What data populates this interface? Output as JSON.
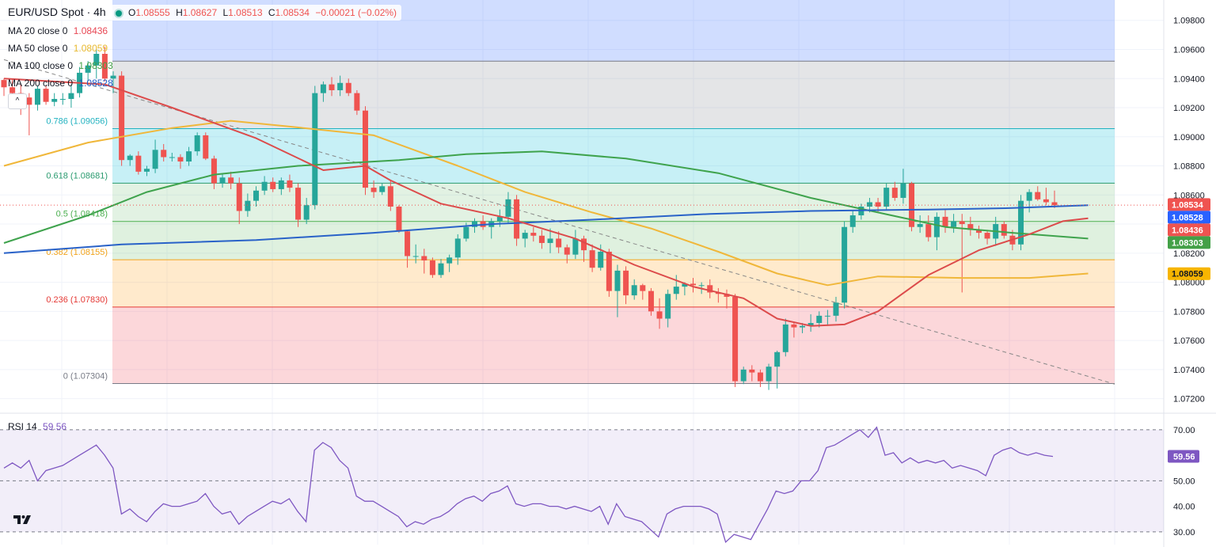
{
  "symbol": {
    "title": "EUR/USD Spot · 4h",
    "open_label": "O",
    "open": "1.08555",
    "high_label": "H",
    "high": "1.08627",
    "low_label": "L",
    "low": "1.08513",
    "close_label": "C",
    "close": "1.08534",
    "change": "−0.00021 (−0.02%)"
  },
  "indicators": [
    {
      "label": "MA 20 close 0",
      "value": "1.08436",
      "color": "#e84855"
    },
    {
      "label": "MA 50 close 0",
      "value": "1.08059",
      "color": "#e8b930"
    },
    {
      "label": "MA 100 close 0",
      "value": "1.08303",
      "color": "#43a047"
    },
    {
      "label": "MA 200 close 0",
      "value": "1.08528",
      "color": "#1e5bc6"
    }
  ],
  "colors": {
    "up": "#26a69a",
    "down": "#ef5350",
    "ma20": "#dc4b4b",
    "ma50": "#f0b73a",
    "ma100": "#3fa34d",
    "ma200": "#2962c8",
    "rsi": "#7e57c2",
    "trendline": "#888888"
  },
  "chart_data": [
    {
      "type": "candlestick",
      "title": "EUR/USD Spot · 4h",
      "y_ticks": [
        "1.09800",
        "1.09600",
        "1.09400",
        "1.09200",
        "1.09000",
        "1.08800",
        "1.08600",
        "1.08400",
        "1.08200",
        "1.08000",
        "1.07800",
        "1.07600",
        "1.07400",
        "1.07200"
      ],
      "ylim": [
        1.071,
        1.0994
      ],
      "grid": true,
      "fibonacci": [
        {
          "label": "0.786 (1.09056)",
          "level": 1.09056,
          "color": "#21b2c0"
        },
        {
          "label": "0.618 (1.08681)",
          "level": 1.08681,
          "color": "#2a9b6f"
        },
        {
          "label": "0.5 (1.08418)",
          "level": 1.08418,
          "color": "#4caf50"
        },
        {
          "label": "0.382 (1.08155)",
          "level": 1.08155,
          "color": "#f2a41c"
        },
        {
          "label": "0.236 (1.07830)",
          "level": 1.0783,
          "color": "#e53935"
        },
        {
          "label": "0 (1.07304)",
          "level": 1.07304,
          "color": "#787b86"
        }
      ],
      "fib_top": 1.0952,
      "price_labels": [
        {
          "value": "1.08534",
          "color": "#ef5350"
        },
        {
          "value": "1.08528",
          "color": "#2962ff"
        },
        {
          "value": "1.08436",
          "color": "#ef5350"
        },
        {
          "value": "1.08303",
          "color": "#43a047"
        },
        {
          "value": "1.08059",
          "color": "#f7b500"
        }
      ],
      "candles": [
        [
          1.0939,
          1.094,
          1.0928,
          1.0934
        ],
        [
          1.0934,
          1.094,
          1.0928,
          1.093
        ],
        [
          1.093,
          1.0936,
          1.0915,
          1.0927
        ],
        [
          1.0927,
          1.093,
          1.0901,
          1.0922
        ],
        [
          1.0922,
          1.0935,
          1.0918,
          1.0933
        ],
        [
          1.0933,
          1.0935,
          1.0922,
          1.0924
        ],
        [
          1.0924,
          1.093,
          1.0921,
          1.0926
        ],
        [
          1.0926,
          1.093,
          1.0922,
          1.0926
        ],
        [
          1.0926,
          1.0936,
          1.092,
          1.093
        ],
        [
          1.093,
          1.0948,
          1.0927,
          1.0944
        ],
        [
          1.0944,
          1.0952,
          1.0938,
          1.0949
        ],
        [
          1.0949,
          1.096,
          1.094,
          1.0957
        ],
        [
          1.0957,
          1.0962,
          1.0938,
          1.094
        ],
        [
          1.094,
          1.0945,
          1.093,
          1.0942
        ],
        [
          1.0942,
          1.0945,
          1.088,
          1.0884
        ],
        [
          1.0884,
          1.0888,
          1.088,
          1.0887
        ],
        [
          1.0887,
          1.089,
          1.0874,
          1.0876
        ],
        [
          1.0876,
          1.088,
          1.0873,
          1.0878
        ],
        [
          1.0878,
          1.0898,
          1.0875,
          1.0891
        ],
        [
          1.0891,
          1.0895,
          1.0883,
          1.0886
        ],
        [
          1.0886,
          1.0889,
          1.0883,
          1.0886
        ],
        [
          1.0886,
          1.0888,
          1.0878,
          1.0883
        ],
        [
          1.0883,
          1.0893,
          1.088,
          1.089
        ],
        [
          1.089,
          1.0903,
          1.0887,
          1.0901
        ],
        [
          1.0901,
          1.0903,
          1.0884,
          1.0885
        ],
        [
          1.0885,
          1.0887,
          1.0864,
          1.0868
        ],
        [
          1.0868,
          1.0875,
          1.0865,
          1.0872
        ],
        [
          1.0872,
          1.0876,
          1.0864,
          1.0868
        ],
        [
          1.0868,
          1.0872,
          1.084,
          1.0849
        ],
        [
          1.0849,
          1.0861,
          1.0845,
          1.0856
        ],
        [
          1.0856,
          1.0866,
          1.0852,
          1.0863
        ],
        [
          1.0863,
          1.0873,
          1.086,
          1.0869
        ],
        [
          1.0869,
          1.0872,
          1.0862,
          1.0864
        ],
        [
          1.0864,
          1.0872,
          1.086,
          1.087
        ],
        [
          1.087,
          1.0874,
          1.0862,
          1.0865
        ],
        [
          1.0865,
          1.0868,
          1.0838,
          1.0843
        ],
        [
          1.0843,
          1.0858,
          1.084,
          1.0853
        ],
        [
          1.0853,
          1.0935,
          1.085,
          1.093
        ],
        [
          1.093,
          1.0938,
          1.0924,
          1.0936
        ],
        [
          1.0936,
          1.0941,
          1.0928,
          1.0932
        ],
        [
          1.0932,
          1.0942,
          1.0928,
          1.0937
        ],
        [
          1.0937,
          1.094,
          1.0928,
          1.093
        ],
        [
          1.093,
          1.0932,
          1.0915,
          1.0918
        ],
        [
          1.0918,
          1.0921,
          1.086,
          1.0865
        ],
        [
          1.0865,
          1.087,
          1.0858,
          1.0862
        ],
        [
          1.0862,
          1.0868,
          1.086,
          1.0866
        ],
        [
          1.0866,
          1.087,
          1.0849,
          1.0852
        ],
        [
          1.0852,
          1.0853,
          1.0834,
          1.0835
        ],
        [
          1.0835,
          1.0836,
          1.081,
          1.0818
        ],
        [
          1.0818,
          1.0826,
          1.0813,
          1.0818
        ],
        [
          1.0818,
          1.0823,
          1.0806,
          1.0815
        ],
        [
          1.0815,
          1.0817,
          1.0803,
          1.0805
        ],
        [
          1.0805,
          1.0816,
          1.0803,
          1.0813
        ],
        [
          1.0813,
          1.0819,
          1.0807,
          1.0817
        ],
        [
          1.0817,
          1.0833,
          1.0812,
          1.083
        ],
        [
          1.083,
          1.0841,
          1.0828,
          1.0838
        ],
        [
          1.0838,
          1.0844,
          1.0834,
          1.0842
        ],
        [
          1.0842,
          1.0846,
          1.0836,
          1.0838
        ],
        [
          1.0838,
          1.0844,
          1.083,
          1.0842
        ],
        [
          1.0842,
          1.085,
          1.0838,
          1.0845
        ],
        [
          1.0845,
          1.0862,
          1.084,
          1.0857
        ],
        [
          1.0857,
          1.086,
          1.0825,
          1.083
        ],
        [
          1.083,
          1.0836,
          1.0824,
          1.0834
        ],
        [
          1.0834,
          1.0838,
          1.0828,
          1.0832
        ],
        [
          1.0832,
          1.0836,
          1.0823,
          1.0827
        ],
        [
          1.0827,
          1.0837,
          1.082,
          1.083
        ],
        [
          1.083,
          1.0835,
          1.082,
          1.0824
        ],
        [
          1.0824,
          1.0826,
          1.0813,
          1.0819
        ],
        [
          1.0819,
          1.0836,
          1.0816,
          1.083
        ],
        [
          1.083,
          1.0832,
          1.0814,
          1.0822
        ],
        [
          1.0822,
          1.0826,
          1.0807,
          1.081
        ],
        [
          1.081,
          1.0826,
          1.0808,
          1.0821
        ],
        [
          1.0821,
          1.0823,
          1.079,
          1.0794
        ],
        [
          1.0794,
          1.0812,
          1.0776,
          1.0808
        ],
        [
          1.0808,
          1.0811,
          1.0785,
          1.0791
        ],
        [
          1.0791,
          1.0802,
          1.0788,
          1.0798
        ],
        [
          1.0798,
          1.0799,
          1.0788,
          1.0794
        ],
        [
          1.0794,
          1.0796,
          1.0777,
          1.078
        ],
        [
          1.078,
          1.0789,
          1.0768,
          1.0775
        ],
        [
          1.0775,
          1.0795,
          1.0769,
          1.0792
        ],
        [
          1.0792,
          1.0805,
          1.0788,
          1.0797
        ],
        [
          1.0797,
          1.08,
          1.0791,
          1.0799
        ],
        [
          1.0799,
          1.0803,
          1.0793,
          1.0798
        ],
        [
          1.0798,
          1.08,
          1.0792,
          1.0798
        ],
        [
          1.0798,
          1.0802,
          1.0789,
          1.0793
        ],
        [
          1.0793,
          1.0796,
          1.0786,
          1.0792
        ],
        [
          1.0792,
          1.0795,
          1.0782,
          1.079
        ],
        [
          1.079,
          1.0792,
          1.0728,
          1.0732
        ],
        [
          1.0732,
          1.0742,
          1.073,
          1.074
        ],
        [
          1.074,
          1.0743,
          1.0732,
          1.0738
        ],
        [
          1.0738,
          1.074,
          1.0728,
          1.0732
        ],
        [
          1.0732,
          1.0744,
          1.0726,
          1.0742
        ],
        [
          1.0742,
          1.0753,
          1.0727,
          1.0752
        ],
        [
          1.0752,
          1.0775,
          1.0749,
          1.0771
        ],
        [
          1.0771,
          1.0773,
          1.0762,
          1.0769
        ],
        [
          1.0769,
          1.0772,
          1.0765,
          1.077
        ],
        [
          1.077,
          1.0778,
          1.0766,
          1.0772
        ],
        [
          1.0772,
          1.078,
          1.0769,
          1.0777
        ],
        [
          1.0777,
          1.0781,
          1.077,
          1.0777
        ],
        [
          1.0777,
          1.079,
          1.0773,
          1.0786
        ],
        [
          1.0786,
          1.0842,
          1.0782,
          1.0838
        ],
        [
          1.0838,
          1.0849,
          1.0834,
          1.0846
        ],
        [
          1.0846,
          1.0854,
          1.0843,
          1.0852
        ],
        [
          1.0852,
          1.0858,
          1.0848,
          1.0855
        ],
        [
          1.0855,
          1.0858,
          1.0848,
          1.0852
        ],
        [
          1.0852,
          1.0868,
          1.085,
          1.0865
        ],
        [
          1.0865,
          1.0869,
          1.0856,
          1.0858
        ],
        [
          1.0858,
          1.0878,
          1.0854,
          1.0868
        ],
        [
          1.0868,
          1.0869,
          1.0835,
          1.0838
        ],
        [
          1.0838,
          1.0846,
          1.0834,
          1.084
        ],
        [
          1.084,
          1.0846,
          1.0828,
          1.0831
        ],
        [
          1.0831,
          1.0848,
          1.0822,
          1.0845
        ],
        [
          1.0845,
          1.085,
          1.0834,
          1.0838
        ],
        [
          1.0838,
          1.0847,
          1.0834,
          1.0842
        ],
        [
          1.0842,
          1.0847,
          1.0793,
          1.084
        ],
        [
          1.084,
          1.0845,
          1.0832,
          1.0836
        ],
        [
          1.0836,
          1.0839,
          1.083,
          1.0834
        ],
        [
          1.0834,
          1.0836,
          1.0826,
          1.083
        ],
        [
          1.083,
          1.0845,
          1.0825,
          1.084
        ],
        [
          1.084,
          1.0842,
          1.083,
          1.0832
        ],
        [
          1.0832,
          1.0836,
          1.0822,
          1.0826
        ],
        [
          1.0826,
          1.086,
          1.0822,
          1.0856
        ],
        [
          1.0856,
          1.0864,
          1.0848,
          1.0862
        ],
        [
          1.0862,
          1.0866,
          1.0856,
          1.0857
        ],
        [
          1.0857,
          1.0865,
          1.0853,
          1.0855
        ],
        [
          1.0855,
          1.0863,
          1.0851,
          1.0853
        ]
      ],
      "ma20": [
        [
          0,
          1.094
        ],
        [
          12,
          1.0936
        ],
        [
          20,
          1.092
        ],
        [
          30,
          1.0899
        ],
        [
          38,
          1.0877
        ],
        [
          43,
          1.088
        ],
        [
          46,
          1.087
        ],
        [
          52,
          1.0854
        ],
        [
          60,
          1.0844
        ],
        [
          68,
          1.083
        ],
        [
          75,
          1.0812
        ],
        [
          82,
          1.0797
        ],
        [
          88,
          1.0789
        ],
        [
          92,
          1.0775
        ],
        [
          96,
          1.077
        ],
        [
          100,
          1.0771
        ],
        [
          104,
          1.078
        ],
        [
          110,
          1.0805
        ],
        [
          116,
          1.0822
        ],
        [
          122,
          1.0833
        ],
        [
          126,
          1.0842
        ],
        [
          129,
          1.0844
        ]
      ],
      "ma50": [
        [
          0,
          1.088
        ],
        [
          10,
          1.0896
        ],
        [
          20,
          1.0906
        ],
        [
          27,
          1.0911
        ],
        [
          34,
          1.0907
        ],
        [
          44,
          1.0901
        ],
        [
          54,
          1.088
        ],
        [
          62,
          1.0862
        ],
        [
          70,
          1.0848
        ],
        [
          77,
          1.0837
        ],
        [
          85,
          1.0821
        ],
        [
          92,
          1.0806
        ],
        [
          98,
          1.0798
        ],
        [
          104,
          1.0804
        ],
        [
          114,
          1.0803
        ],
        [
          122,
          1.0803
        ],
        [
          129,
          1.0806
        ]
      ],
      "ma100": [
        [
          0,
          1.0827
        ],
        [
          10,
          1.0846
        ],
        [
          17,
          1.0862
        ],
        [
          25,
          1.0874
        ],
        [
          35,
          1.088
        ],
        [
          47,
          1.0884
        ],
        [
          55,
          1.0888
        ],
        [
          64,
          1.089
        ],
        [
          74,
          1.0885
        ],
        [
          85,
          1.0875
        ],
        [
          96,
          1.0858
        ],
        [
          104,
          1.0848
        ],
        [
          112,
          1.0838
        ],
        [
          120,
          1.0834
        ],
        [
          129,
          1.083
        ]
      ],
      "ma200": [
        [
          0,
          1.082
        ],
        [
          14,
          1.0826
        ],
        [
          30,
          1.0829
        ],
        [
          44,
          1.0834
        ],
        [
          58,
          1.084
        ],
        [
          70,
          1.0843
        ],
        [
          84,
          1.0847
        ],
        [
          96,
          1.0849
        ],
        [
          110,
          1.085
        ],
        [
          120,
          1.0851
        ],
        [
          129,
          1.0853
        ]
      ],
      "trendline": {
        "from": [
          1.0953,
          0.0
        ],
        "to": [
          1.073,
          1.0
        ],
        "style": "dashed"
      }
    },
    {
      "type": "line",
      "title": "RSI 14",
      "value_label": "59.56",
      "y_ticks": [
        "70.00",
        "50.00",
        "40.00",
        "30.00"
      ],
      "levels": [
        70,
        50,
        30
      ],
      "ylim": [
        25,
        74
      ],
      "values": [
        55,
        57,
        55,
        58,
        50,
        54,
        55,
        56,
        58,
        60,
        62,
        64,
        60,
        55,
        37,
        39,
        36,
        34,
        38,
        41,
        40,
        40,
        41,
        42,
        45,
        40,
        37,
        38,
        33,
        36,
        38,
        40,
        42,
        41,
        43,
        38,
        34,
        62,
        65,
        63,
        58,
        55,
        44,
        42,
        42,
        40,
        38,
        36,
        32,
        34,
        33,
        35,
        36,
        38,
        41,
        43,
        44,
        42,
        45,
        46,
        48,
        41,
        40,
        41,
        41,
        40,
        40,
        39,
        40,
        39,
        38,
        40,
        33,
        41,
        36,
        35,
        34,
        31,
        28,
        37,
        39,
        40,
        40,
        40,
        39,
        37,
        26,
        29,
        28,
        27,
        33,
        39,
        46,
        45,
        46,
        50,
        50,
        54,
        63,
        64,
        66,
        68,
        70,
        67,
        71,
        60,
        61,
        57,
        59,
        57,
        58,
        57,
        58,
        55,
        56,
        55,
        54,
        52,
        60,
        62,
        63,
        61,
        60,
        61,
        60,
        59.56
      ]
    }
  ]
}
